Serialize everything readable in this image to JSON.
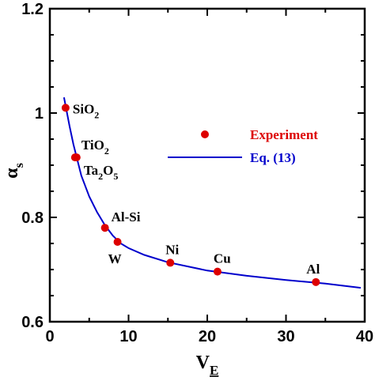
{
  "chart_data": {
    "type": "scatter",
    "xlabel": "V",
    "xlabel_sub": "E",
    "ylabel": "α",
    "ylabel_sub": "s",
    "xlim": [
      0,
      40
    ],
    "ylim": [
      0.6,
      1.2
    ],
    "x_ticks": [
      0,
      10,
      20,
      30,
      40
    ],
    "x_tick_labels": [
      "0",
      "10",
      "20",
      "30",
      "40"
    ],
    "y_ticks": [
      0.6,
      0.8,
      1.0,
      1.2
    ],
    "y_tick_labels": [
      "0.6",
      "0.8",
      "1",
      "1.2"
    ],
    "grid": false,
    "legend_position": "center-right",
    "series": [
      {
        "name": "Experiment",
        "kind": "points",
        "color": "#dd0000",
        "points": [
          {
            "x": 2.0,
            "y": 1.01,
            "label": "SiO",
            "label_sub": "2"
          },
          {
            "x": 3.2,
            "y": 0.915,
            "label": "TiO",
            "label_sub": "2"
          },
          {
            "x": 3.4,
            "y": 0.915,
            "label": "Ta",
            "label_sub": "2",
            "label_after": "O",
            "label_sub2": "5"
          },
          {
            "x": 7.0,
            "y": 0.78,
            "label": "Al-Si"
          },
          {
            "x": 8.6,
            "y": 0.753,
            "label": "W"
          },
          {
            "x": 15.3,
            "y": 0.713,
            "label": "Ni"
          },
          {
            "x": 21.3,
            "y": 0.696,
            "label": "Cu"
          },
          {
            "x": 33.8,
            "y": 0.676,
            "label": "Al"
          }
        ]
      },
      {
        "name": "Eq. (13)",
        "kind": "line",
        "color": "#0000cc",
        "x": [
          1.8,
          2.5,
          3.0,
          4.0,
          5.0,
          6.0,
          7.0,
          8.0,
          9.0,
          10.0,
          12.0,
          15.0,
          20.0,
          25.0,
          30.0,
          35.0,
          39.5
        ],
        "y": [
          1.03,
          0.975,
          0.94,
          0.88,
          0.84,
          0.81,
          0.785,
          0.765,
          0.75,
          0.741,
          0.728,
          0.714,
          0.698,
          0.688,
          0.68,
          0.673,
          0.665
        ]
      }
    ]
  }
}
